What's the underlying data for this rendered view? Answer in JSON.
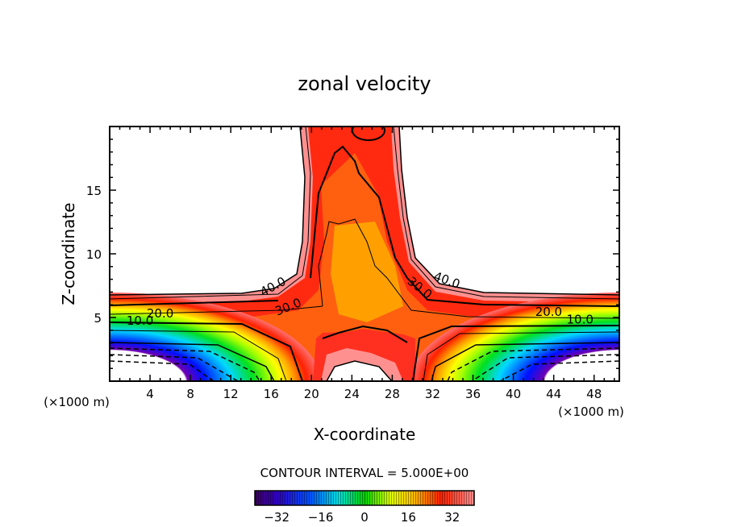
{
  "chart_data": {
    "type": "heatmap",
    "subtype": "filled-contour",
    "title": "zonal velocity",
    "xlabel": "X-coordinate",
    "ylabel": "Z-coordinate",
    "x_unit_label": "(×1000 m)",
    "x_unit_label_right": "(×1000 m)",
    "xlim": [
      0,
      50.5
    ],
    "ylim": [
      0,
      20
    ],
    "xticks": [
      4,
      8,
      12,
      16,
      20,
      24,
      28,
      32,
      36,
      40,
      44,
      48
    ],
    "yticks": [
      5,
      10,
      15
    ],
    "contour_interval_text": "CONTOUR INTERVAL = 5.000E+00",
    "contour_interval": 5,
    "contour_labels": [
      {
        "text": "40.0",
        "x": 16.2,
        "z": 7.4
      },
      {
        "text": "30.0",
        "x": 17.7,
        "z": 5.8
      },
      {
        "text": "30.0",
        "x": 30.7,
        "z": 7.3
      },
      {
        "text": "40.0",
        "x": 33.4,
        "z": 7.9
      },
      {
        "text": "20.0",
        "x": 5.0,
        "z": 5.3
      },
      {
        "text": "10.0",
        "x": 3.0,
        "z": 4.7
      },
      {
        "text": "20.0",
        "x": 43.5,
        "z": 5.4
      },
      {
        "text": "10.0",
        "x": 46.6,
        "z": 4.8
      }
    ],
    "features": {
      "max_core": "~30-35 near x=24-26, z=6-9 (orange)",
      "upper_limit_band": "values above ~45 left blank (white) above z~6.5 outside central jet",
      "negative_lobes": "dashed contours, minima near x~8 and x~42 at z~0-2"
    },
    "colorbar": {
      "min": -40,
      "max": 40,
      "ticks": [
        -32,
        -16,
        0,
        16,
        32
      ],
      "tick_labels": [
        "−32",
        "−16",
        "0",
        "16",
        "32"
      ]
    }
  }
}
